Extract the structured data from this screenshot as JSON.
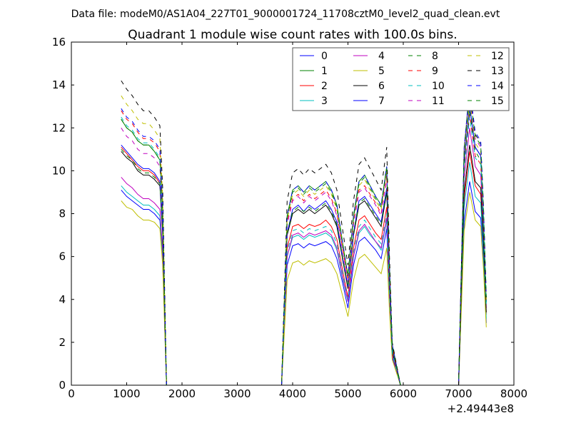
{
  "chart_data": {
    "type": "line",
    "suptitle": "Data file: modeM0/AS1A04_227T01_9000001724_11708cztM0_level2_quad_clean.evt",
    "title": "Quadrant 1 module wise count rates with 100.0s bins.",
    "xlabel": "",
    "ylabel": "",
    "x_offset_label": "+2.49443e8",
    "xlim": [
      0,
      8000
    ],
    "ylim": [
      0,
      16
    ],
    "xticks": [
      "0",
      "1000",
      "2000",
      "3000",
      "4000",
      "5000",
      "6000",
      "7000",
      "8000"
    ],
    "yticks": [
      "0",
      "2",
      "4",
      "6",
      "8",
      "10",
      "12",
      "14",
      "16"
    ],
    "grid": false,
    "legend_placement": "upper-right",
    "x": [
      900,
      1000,
      1100,
      1200,
      1300,
      1400,
      1500,
      1600,
      1650,
      1720,
      3800,
      3900,
      4000,
      4100,
      4200,
      4300,
      4400,
      4500,
      4600,
      4700,
      4800,
      4900,
      5000,
      5100,
      5200,
      5300,
      5400,
      5500,
      5600,
      5700,
      5750,
      5800,
      5950,
      7000,
      7100,
      7200,
      7300,
      7400,
      7450,
      7500
    ],
    "series": [
      {
        "name": "0",
        "color": "#0000ff",
        "dashed": false,
        "values": [
          9.1,
          8.8,
          8.6,
          8.4,
          8.2,
          8.2,
          8.0,
          7.7,
          5.9,
          0,
          0,
          5.6,
          6.5,
          6.6,
          6.4,
          6.6,
          6.5,
          6.6,
          6.7,
          6.5,
          5.9,
          4.8,
          3.6,
          5.6,
          6.7,
          6.9,
          6.6,
          6.3,
          5.9,
          7.3,
          4.0,
          1.3,
          0,
          0,
          7.6,
          9.5,
          8.1,
          7.8,
          5.7,
          2.9
        ]
      },
      {
        "name": "1",
        "color": "#008000",
        "dashed": false,
        "values": [
          12.4,
          12.0,
          11.8,
          11.4,
          11.2,
          11.2,
          10.9,
          10.5,
          8.1,
          0,
          0,
          7.9,
          9.1,
          9.3,
          9.0,
          9.3,
          9.1,
          9.3,
          9.5,
          9.1,
          8.4,
          6.7,
          5.1,
          7.9,
          9.5,
          9.8,
          9.3,
          8.8,
          8.4,
          10.2,
          5.6,
          1.9,
          0,
          0,
          10.4,
          13.0,
          11.1,
          10.7,
          7.8,
          3.9
        ]
      },
      {
        "name": "2",
        "color": "#ff0000",
        "dashed": false,
        "values": [
          11.1,
          10.8,
          10.5,
          10.2,
          10.0,
          10.0,
          9.8,
          9.4,
          7.2,
          0,
          0,
          6.4,
          7.4,
          7.5,
          7.3,
          7.5,
          7.4,
          7.5,
          7.7,
          7.4,
          6.8,
          5.4,
          4.1,
          6.4,
          7.7,
          7.9,
          7.5,
          7.1,
          6.8,
          8.3,
          4.5,
          1.5,
          0,
          0,
          8.7,
          10.9,
          9.3,
          8.9,
          6.5,
          3.3
        ]
      },
      {
        "name": "3",
        "color": "#00bfbf",
        "dashed": false,
        "values": [
          9.3,
          9.0,
          8.8,
          8.6,
          8.4,
          8.4,
          8.2,
          7.9,
          6.0,
          0,
          0,
          6.0,
          6.9,
          7.0,
          6.8,
          7.0,
          6.9,
          7.0,
          7.1,
          6.9,
          6.3,
          5.0,
          3.9,
          6.0,
          7.1,
          7.4,
          7.0,
          6.7,
          6.3,
          7.7,
          4.2,
          1.4,
          0,
          0,
          8.3,
          10.4,
          8.8,
          8.5,
          6.2,
          3.1
        ]
      },
      {
        "name": "4",
        "color": "#bf00bf",
        "dashed": false,
        "values": [
          9.7,
          9.4,
          9.2,
          8.9,
          8.7,
          8.7,
          8.5,
          8.2,
          6.3,
          0,
          0,
          6.0,
          7.0,
          7.1,
          6.9,
          7.1,
          7.0,
          7.1,
          7.2,
          7.0,
          6.4,
          5.1,
          3.9,
          6.0,
          7.2,
          7.5,
          7.1,
          6.7,
          6.4,
          7.8,
          4.3,
          1.4,
          0,
          0,
          9.6,
          12.0,
          10.2,
          9.8,
          7.2,
          3.6
        ]
      },
      {
        "name": "5",
        "color": "#bfbf00",
        "dashed": false,
        "values": [
          8.6,
          8.3,
          8.2,
          7.9,
          7.7,
          7.7,
          7.6,
          7.3,
          5.6,
          0,
          0,
          4.9,
          5.7,
          5.8,
          5.6,
          5.8,
          5.7,
          5.8,
          5.9,
          5.7,
          5.2,
          4.2,
          3.2,
          4.9,
          5.9,
          6.1,
          5.8,
          5.5,
          5.2,
          6.4,
          3.5,
          1.2,
          0,
          0,
          7.2,
          9.0,
          7.7,
          7.4,
          5.4,
          2.7
        ]
      },
      {
        "name": "6",
        "color": "#000000",
        "dashed": false,
        "values": [
          10.9,
          10.6,
          10.4,
          10.0,
          9.8,
          9.8,
          9.6,
          9.3,
          7.1,
          0,
          0,
          7.0,
          8.0,
          8.2,
          8.0,
          8.2,
          8.0,
          8.2,
          8.4,
          8.0,
          7.4,
          5.9,
          4.5,
          7.0,
          8.4,
          8.6,
          8.2,
          7.8,
          7.4,
          9.0,
          4.9,
          1.6,
          0,
          0,
          9.0,
          11.2,
          9.5,
          9.2,
          6.7,
          3.4
        ]
      },
      {
        "name": "7",
        "color": "#0000ff",
        "dashed": false,
        "values": [
          11.2,
          10.9,
          10.6,
          10.3,
          10.1,
          10.1,
          9.9,
          9.5,
          7.3,
          0,
          0,
          7.1,
          8.2,
          8.4,
          8.1,
          8.4,
          8.2,
          8.4,
          8.6,
          8.2,
          7.6,
          6.0,
          4.6,
          7.1,
          8.6,
          8.8,
          8.4,
          8.0,
          7.6,
          9.2,
          5.0,
          1.7,
          0,
          0,
          10.4,
          13.0,
          11.1,
          10.7,
          7.8,
          3.9
        ]
      },
      {
        "name": "8",
        "color": "#008000",
        "dashed": true,
        "values": [
          11.0,
          10.7,
          10.5,
          10.1,
          9.9,
          9.9,
          9.7,
          9.4,
          7.2,
          0,
          0,
          7.1,
          8.1,
          8.3,
          8.1,
          8.3,
          8.1,
          8.3,
          8.5,
          8.1,
          7.5,
          6.0,
          4.6,
          7.1,
          8.5,
          8.7,
          8.3,
          7.9,
          7.5,
          9.1,
          5.0,
          1.7,
          0,
          0,
          10.2,
          12.8,
          10.9,
          10.5,
          7.7,
          3.8
        ]
      },
      {
        "name": "9",
        "color": "#ff0000",
        "dashed": true,
        "values": [
          12.8,
          12.4,
          12.2,
          11.8,
          11.5,
          11.5,
          11.3,
          10.9,
          8.3,
          0,
          0,
          7.6,
          8.7,
          8.9,
          8.6,
          8.9,
          8.7,
          8.9,
          9.1,
          8.7,
          8.0,
          6.4,
          4.9,
          7.6,
          9.1,
          9.3,
          8.9,
          8.5,
          8.0,
          9.8,
          5.3,
          1.8,
          0,
          0,
          10.1,
          12.6,
          10.7,
          10.3,
          7.6,
          3.8
        ]
      },
      {
        "name": "10",
        "color": "#00bfbf",
        "dashed": true,
        "values": [
          12.5,
          12.1,
          11.9,
          11.5,
          11.3,
          11.3,
          11.0,
          10.6,
          8.1,
          0,
          0,
          6.2,
          7.2,
          7.3,
          7.1,
          7.3,
          7.2,
          7.3,
          7.4,
          7.2,
          6.6,
          5.3,
          4.0,
          6.2,
          7.4,
          7.7,
          7.3,
          6.9,
          6.6,
          8.0,
          4.4,
          1.5,
          0,
          0,
          10.0,
          12.5,
          10.6,
          10.3,
          7.5,
          3.8
        ]
      },
      {
        "name": "11",
        "color": "#bf00bf",
        "dashed": true,
        "values": [
          12.0,
          11.6,
          11.4,
          11.0,
          10.8,
          10.8,
          10.6,
          10.2,
          7.8,
          0,
          0,
          7.5,
          8.6,
          8.8,
          8.5,
          8.8,
          8.6,
          8.8,
          9.0,
          8.6,
          7.9,
          6.3,
          4.8,
          7.5,
          9.0,
          9.2,
          8.8,
          8.4,
          7.9,
          9.7,
          5.3,
          1.8,
          0,
          0,
          10.8,
          13.5,
          11.5,
          11.1,
          8.1,
          4.1
        ]
      },
      {
        "name": "12",
        "color": "#bfbf00",
        "dashed": true,
        "values": [
          13.5,
          13.1,
          12.8,
          12.4,
          12.2,
          12.2,
          11.9,
          11.5,
          8.8,
          0,
          0,
          7.7,
          8.9,
          9.1,
          8.8,
          9.1,
          8.9,
          9.1,
          9.3,
          8.9,
          8.2,
          6.6,
          5.0,
          7.7,
          9.3,
          9.6,
          9.1,
          8.6,
          8.2,
          10.0,
          5.5,
          1.8,
          0,
          0,
          10.6,
          13.3,
          11.3,
          10.9,
          8.0,
          4.0
        ]
      },
      {
        "name": "13",
        "color": "#000000",
        "dashed": true,
        "values": [
          14.2,
          13.8,
          13.5,
          13.1,
          12.8,
          12.8,
          12.5,
          12.1,
          9.2,
          0,
          0,
          8.6,
          9.9,
          10.1,
          9.8,
          10.1,
          9.9,
          10.1,
          10.3,
          9.9,
          9.1,
          7.3,
          5.6,
          8.6,
          10.3,
          10.6,
          10.1,
          9.6,
          9.1,
          11.1,
          6.1,
          2.0,
          0,
          0,
          11.0,
          13.8,
          11.7,
          11.3,
          8.3,
          4.1
        ]
      },
      {
        "name": "14",
        "color": "#0000ff",
        "dashed": true,
        "values": [
          12.9,
          12.5,
          12.3,
          11.9,
          11.6,
          11.6,
          11.4,
          11.0,
          8.4,
          0,
          0,
          7.9,
          9.1,
          9.3,
          9.0,
          9.3,
          9.1,
          9.3,
          9.5,
          9.1,
          8.4,
          6.7,
          5.1,
          7.9,
          9.5,
          9.8,
          9.3,
          8.8,
          8.4,
          10.2,
          5.6,
          1.9,
          0,
          0,
          11.1,
          13.9,
          11.8,
          11.4,
          8.3,
          4.2
        ]
      },
      {
        "name": "15",
        "color": "#008000",
        "dashed": true,
        "values": [
          12.4,
          12.0,
          11.8,
          11.4,
          11.2,
          11.2,
          10.9,
          10.5,
          8.1,
          0,
          0,
          7.8,
          9.0,
          9.2,
          8.9,
          9.2,
          9.0,
          9.2,
          9.4,
          9.0,
          8.3,
          6.6,
          5.1,
          7.8,
          9.4,
          9.7,
          9.2,
          8.7,
          8.3,
          10.1,
          5.5,
          1.8,
          0,
          0,
          10.9,
          13.6,
          11.6,
          11.2,
          8.2,
          4.1
        ]
      }
    ]
  }
}
